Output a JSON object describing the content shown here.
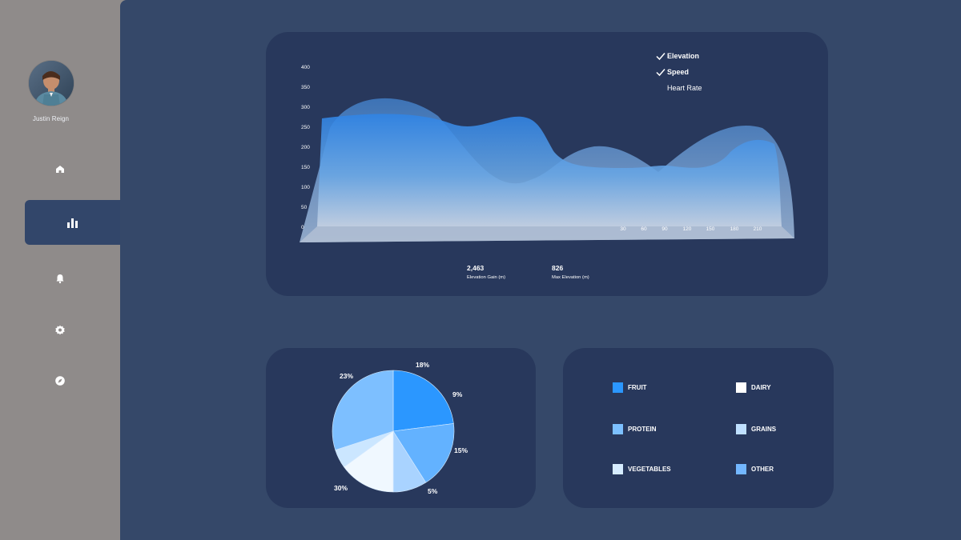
{
  "user": {
    "name": "Justin Reign"
  },
  "nav": {
    "items": [
      {
        "icon": "home-icon"
      },
      {
        "icon": "bar-chart-icon",
        "active": true
      },
      {
        "icon": "bell-icon"
      },
      {
        "icon": "gear-icon"
      },
      {
        "icon": "compass-icon"
      }
    ]
  },
  "main_chart": {
    "legend": [
      {
        "label": "Elevation",
        "checked": true
      },
      {
        "label": "Speed",
        "checked": true
      },
      {
        "label": "Heart Rate",
        "checked": false
      }
    ],
    "y_ticks": [
      "400",
      "350",
      "300",
      "250",
      "200",
      "150",
      "100",
      "50",
      "0"
    ],
    "x_ticks": [
      "30",
      "60",
      "90",
      "120",
      "150",
      "180",
      "210"
    ],
    "stats": [
      {
        "value": "2,463",
        "label": "Elevation Gain (m)"
      },
      {
        "value": "826",
        "label": "Max Elevation (m)"
      }
    ]
  },
  "chart_data": [
    {
      "type": "pie",
      "labels": [
        "FRUIT",
        "DAIRY",
        "PROTEIN",
        "GRAINS",
        "VEGETABLES",
        "OTHER"
      ],
      "values": [
        23,
        18,
        9,
        15,
        5,
        30
      ],
      "label_texts": [
        "23%",
        "18%",
        "9%",
        "15%",
        "5%",
        "30%"
      ],
      "colors": [
        "#2b97ff",
        "#63b2ff",
        "#a9d3ff",
        "#f0f8ff",
        "#cbe6ff",
        "#7dbfff"
      ]
    }
  ],
  "food_legend": [
    {
      "label": "FRUIT",
      "color": "#2b97ff"
    },
    {
      "label": "DAIRY",
      "color": "#ffffff"
    },
    {
      "label": "PROTEIN",
      "color": "#7cc0ff"
    },
    {
      "label": "GRAINS",
      "color": "#bfe0ff"
    },
    {
      "label": "VEGETABLES",
      "color": "#d6ecff"
    },
    {
      "label": "OTHER",
      "color": "#73b7ff"
    }
  ]
}
